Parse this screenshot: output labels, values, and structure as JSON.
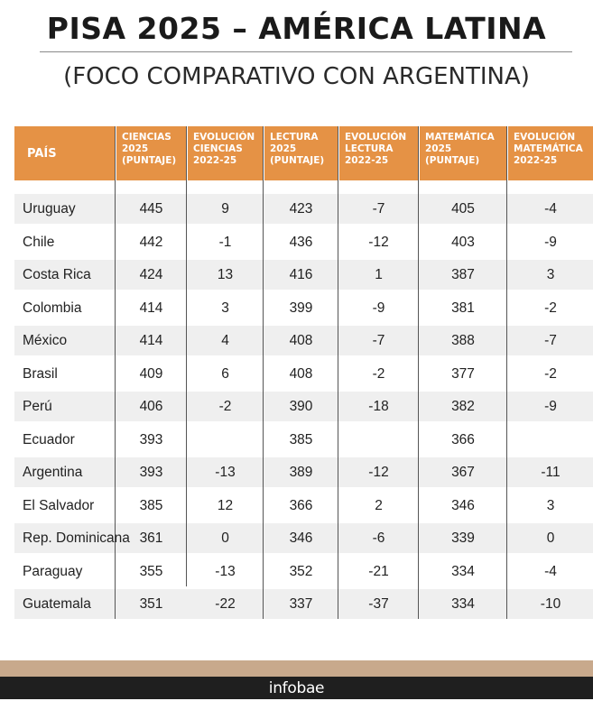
{
  "title": "PISA 2025 – AMÉRICA LATINA",
  "subtitle": "(FOCO COMPARATIVO CON ARGENTINA)",
  "colors": {
    "header_bg": "#e59245",
    "header_text": "#ffffff",
    "row_shade": "#efefef",
    "footer_bar": "#c8a98c",
    "footer_bg": "#1f1f1f"
  },
  "table": {
    "headers": [
      "PAÍS",
      "CIENCIAS\n2025\n(PUNTAJE)",
      "EVOLUCIÓN\nCIENCIAS\n2022-25",
      "LECTURA\n2025\n(PUNTAJE)",
      "EVOLUCIÓN\nLECTURA\n2022-25",
      "MATEMÁTICA\n2025\n(PUNTAJE)",
      "EVOLUCIÓN\nMATEMÁTICA\n2022-25"
    ],
    "rows": [
      [
        "Uruguay",
        "445",
        "9",
        "423",
        "-7",
        "405",
        "-4"
      ],
      [
        "Chile",
        "442",
        "-1",
        "436",
        "-12",
        "403",
        "-9"
      ],
      [
        "Costa Rica",
        "424",
        "13",
        "416",
        "1",
        "387",
        "3"
      ],
      [
        "Colombia",
        "414",
        "3",
        "399",
        "-9",
        "381",
        "-2"
      ],
      [
        "México",
        "414",
        "4",
        "408",
        "-7",
        "388",
        "-7"
      ],
      [
        "Brasil",
        "409",
        "6",
        "408",
        "-2",
        "377",
        "-2"
      ],
      [
        "Perú",
        "406",
        "-2",
        "390",
        "-18",
        "382",
        "-9"
      ],
      [
        "Ecuador",
        "393",
        "",
        "385",
        "",
        "366",
        ""
      ],
      [
        "Argentina",
        "393",
        "-13",
        "389",
        "-12",
        "367",
        "-11"
      ],
      [
        "El Salvador",
        "385",
        "12",
        "366",
        "2",
        "346",
        "3"
      ],
      [
        "Rep. Dominicana",
        "361",
        "0",
        "346",
        "-6",
        "339",
        "0"
      ],
      [
        "Paraguay",
        "355",
        "-13",
        "352",
        "-21",
        "334",
        "-4"
      ],
      [
        "Guatemala",
        "351",
        "-22",
        "337",
        "-37",
        "334",
        "-10"
      ]
    ]
  },
  "footer": {
    "brand": "infobae"
  }
}
